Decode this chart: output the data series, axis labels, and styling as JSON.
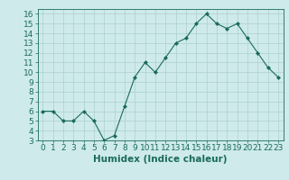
{
  "x": [
    0,
    1,
    2,
    3,
    4,
    5,
    6,
    7,
    8,
    9,
    10,
    11,
    12,
    13,
    14,
    15,
    16,
    17,
    18,
    19,
    20,
    21,
    22,
    23
  ],
  "y": [
    6,
    6,
    5,
    5,
    6,
    5,
    3,
    3.5,
    6.5,
    9.5,
    11,
    10,
    11.5,
    13,
    13.5,
    15,
    16,
    15,
    14.5,
    15,
    13.5,
    12,
    10.5,
    9.5
  ],
  "line_color": "#1a6b5a",
  "marker": "D",
  "marker_size": 2.0,
  "bg_color": "#ceeaea",
  "grid_color": "#aed0d0",
  "xlabel": "Humidex (Indice chaleur)",
  "xlim": [
    -0.5,
    23.5
  ],
  "ylim": [
    3,
    16.5
  ],
  "yticks": [
    3,
    4,
    5,
    6,
    7,
    8,
    9,
    10,
    11,
    12,
    13,
    14,
    15,
    16
  ],
  "xticks": [
    0,
    1,
    2,
    3,
    4,
    5,
    6,
    7,
    8,
    9,
    10,
    11,
    12,
    13,
    14,
    15,
    16,
    17,
    18,
    19,
    20,
    21,
    22,
    23
  ],
  "tick_color": "#1a6b5a",
  "label_fontsize": 6.5,
  "xlabel_fontsize": 7.5
}
